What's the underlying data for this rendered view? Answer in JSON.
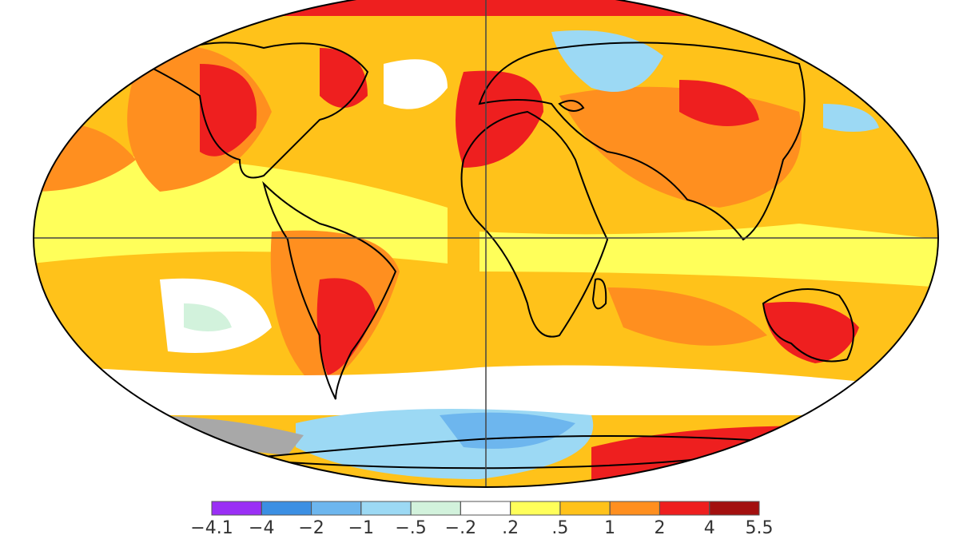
{
  "legend": {
    "ticks": [
      {
        "value": -4.1,
        "label": "−4.1"
      },
      {
        "value": -4,
        "label": "−4"
      },
      {
        "value": -2,
        "label": "−2"
      },
      {
        "value": -1,
        "label": "−1"
      },
      {
        "value": -0.5,
        "label": "−.5"
      },
      {
        "value": -0.2,
        "label": "−.2"
      },
      {
        "value": 0.2,
        "label": ".2"
      },
      {
        "value": 0.5,
        "label": ".5"
      },
      {
        "value": 1,
        "label": "1"
      },
      {
        "value": 2,
        "label": "2"
      },
      {
        "value": 4,
        "label": "4"
      },
      {
        "value": 5.5,
        "label": "5.5"
      }
    ],
    "colors": [
      "#9a2ff5",
      "#3b8fe3",
      "#6db6ee",
      "#9cd9f4",
      "#d2f2dc",
      "#ffffff",
      "#ffff5a",
      "#ffc21a",
      "#ff8f1f",
      "#ee1f1f",
      "#a3100f"
    ]
  }
}
